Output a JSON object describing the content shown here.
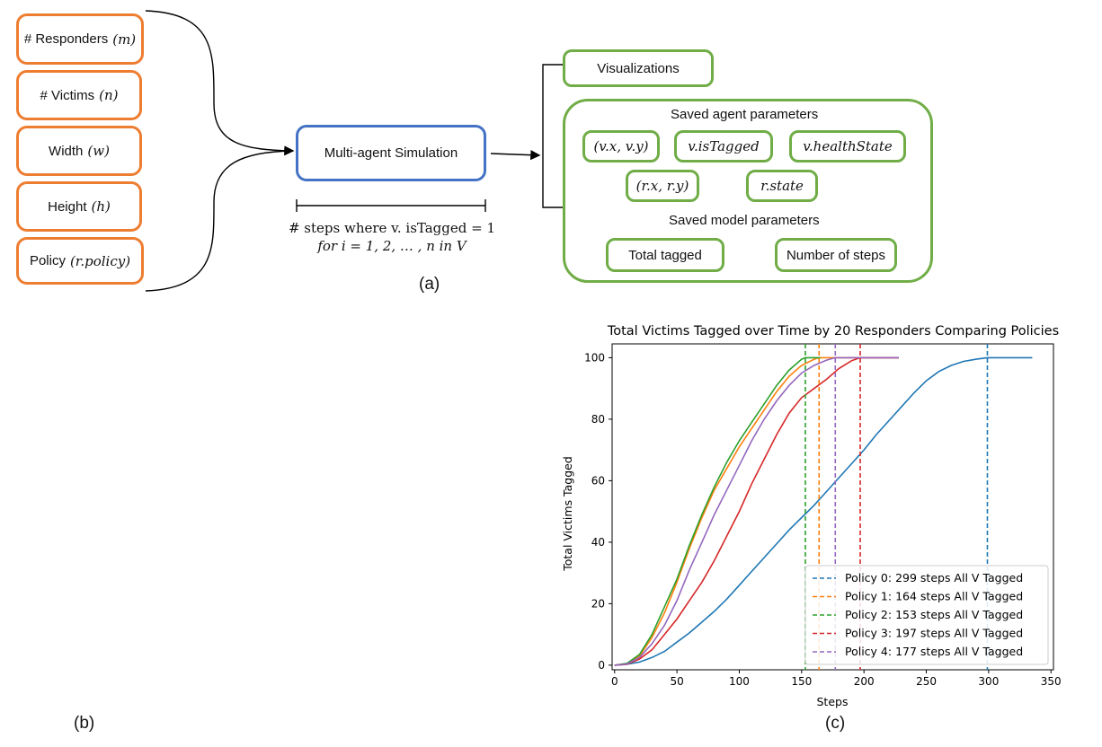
{
  "inputs": [
    {
      "label": "# Responders",
      "symbol": "(m)"
    },
    {
      "label": "# Victims",
      "symbol": "(n)"
    },
    {
      "label": "Width",
      "symbol": "(w)"
    },
    {
      "label": "Height",
      "symbol": "(h)"
    },
    {
      "label": "Policy",
      "symbol": "(r.policy)"
    }
  ],
  "simulation": {
    "label": "Multi-agent Simulation"
  },
  "formula": {
    "line1": "# steps where v. isTagged = 1",
    "line2": "for i = 1, 2, … , n in V"
  },
  "outputs": {
    "visualizations": "Visualizations",
    "agent_params_title": "Saved agent parameters",
    "agent_params": [
      "(v.x, v.y)",
      "v.isTagged",
      "v.healthState",
      "(r.x, r.y)",
      "r.state"
    ],
    "model_params_title": "Saved model parameters",
    "model_params": [
      "Total tagged",
      "Number of steps"
    ]
  },
  "captions": {
    "a": "(a)",
    "b": "(b)",
    "c": "(c)"
  },
  "colors": {
    "input_border": "#ED7D31",
    "output_border": "#70AD47",
    "sim_border": "#4472C4"
  },
  "chart_data": {
    "type": "line",
    "title": "Total Victims Tagged over Time by 20 Responders Comparing Policies",
    "xlabel": "Steps",
    "ylabel": "Total Victims Tagged",
    "xlim": [
      0,
      350
    ],
    "ylim": [
      0,
      100
    ],
    "xticks": [
      0,
      50,
      100,
      150,
      200,
      250,
      300,
      350
    ],
    "yticks": [
      0,
      20,
      40,
      60,
      80,
      100
    ],
    "legend_position": "lower-right",
    "series": [
      {
        "name": "Policy 0: 299 steps All V Tagged",
        "color": "#1f77b4",
        "vline": 299,
        "x": [
          0,
          10,
          20,
          30,
          40,
          50,
          60,
          70,
          80,
          90,
          100,
          110,
          120,
          130,
          140,
          150,
          160,
          170,
          180,
          190,
          200,
          210,
          220,
          230,
          240,
          250,
          260,
          270,
          280,
          290,
          299,
          310,
          320,
          335
        ],
        "y": [
          0,
          0.3,
          1,
          2.5,
          4.5,
          7.5,
          10.5,
          14,
          17.5,
          21.5,
          26,
          30.5,
          35,
          39.5,
          44,
          48,
          52,
          56.5,
          61,
          65.5,
          70,
          75,
          79.5,
          84,
          88.5,
          92.5,
          95.5,
          97.5,
          98.8,
          99.5,
          100,
          100,
          100,
          100
        ]
      },
      {
        "name": "Policy 1: 164 steps All V Tagged",
        "color": "#ff7f0e",
        "vline": 164,
        "x": [
          0,
          10,
          20,
          30,
          40,
          50,
          60,
          70,
          80,
          90,
          100,
          110,
          120,
          130,
          140,
          150,
          160,
          164,
          180,
          200,
          228
        ],
        "y": [
          0,
          0.5,
          3,
          9,
          17,
          27,
          38,
          48,
          57,
          64,
          71,
          77,
          83,
          89,
          94,
          97.5,
          99.5,
          100,
          100,
          100,
          100
        ]
      },
      {
        "name": "Policy 2: 153 steps All V Tagged",
        "color": "#2ca02c",
        "vline": 153,
        "x": [
          0,
          10,
          20,
          30,
          40,
          50,
          60,
          70,
          80,
          90,
          100,
          110,
          120,
          130,
          140,
          150,
          153,
          165
        ],
        "y": [
          0,
          0.6,
          3.5,
          10,
          19,
          28,
          39,
          49,
          58,
          66,
          73,
          79,
          85,
          91,
          96,
          99.5,
          100,
          100
        ]
      },
      {
        "name": "Policy 3: 197 steps All V Tagged",
        "color": "#d62728",
        "vline": 197,
        "x": [
          0,
          10,
          20,
          30,
          40,
          50,
          60,
          70,
          80,
          90,
          100,
          110,
          120,
          130,
          140,
          150,
          160,
          170,
          180,
          190,
          197,
          210,
          228
        ],
        "y": [
          0,
          0.3,
          2,
          5,
          10,
          15,
          21,
          27,
          34,
          42,
          50,
          59,
          67,
          75,
          82,
          87,
          90,
          93,
          96.5,
          99,
          100,
          100,
          100
        ]
      },
      {
        "name": "Policy 4: 177 steps All V Tagged",
        "color": "#9467bd",
        "vline": 177,
        "x": [
          0,
          10,
          20,
          30,
          40,
          50,
          60,
          70,
          80,
          90,
          100,
          110,
          120,
          130,
          140,
          150,
          160,
          170,
          177,
          190,
          200,
          228
        ],
        "y": [
          0,
          0.4,
          2.5,
          7,
          13,
          21,
          31,
          40,
          49,
          57,
          65,
          73,
          80,
          86,
          91,
          95,
          97.5,
          99.2,
          100,
          100,
          100,
          100
        ]
      }
    ]
  }
}
